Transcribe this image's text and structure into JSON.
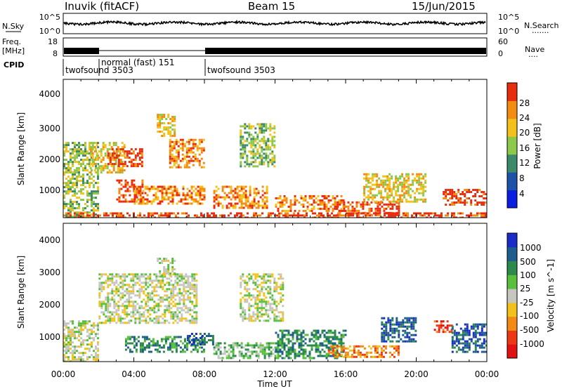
{
  "header": {
    "station": "Inuvik (fitACF)",
    "beam": "Beam 15",
    "date": "15/Jun/2015"
  },
  "noise_panel": {
    "left_label": "N.Sky",
    "right_label": "N.Search",
    "right_legend_dots": "·······",
    "left_ticks": [
      "10^5",
      "10^0"
    ],
    "right_ticks": [
      "10^5",
      "10^0"
    ]
  },
  "freq_panel": {
    "left_label_1": "Freq.",
    "left_label_2": "[MHz]",
    "right_label": "Nave",
    "right_legend_dots": "····",
    "left_ticks": [
      "18",
      "8"
    ],
    "right_ticks": [
      "60",
      "0"
    ]
  },
  "cpid_panel": {
    "label": "CPID",
    "segments": [
      {
        "start_h": 0,
        "end_h": 2.0,
        "text": "twofsound 3503"
      },
      {
        "start_h": 2.0,
        "end_h": 8.0,
        "text": "normal (fast) 151"
      },
      {
        "start_h": 8.0,
        "end_h": 24.0,
        "text": "twofsound 3503"
      }
    ]
  },
  "power_panel": {
    "ylabel": "Slant Range [km]",
    "yticks": [
      "4000",
      "3000",
      "2000",
      "1000"
    ],
    "colorbar_label": "Power [dB]",
    "colorbar_ticks": [
      "28",
      "24",
      "20",
      "16",
      "12",
      "8",
      "4"
    ],
    "colors": [
      "#0a1de0",
      "#1d52a8",
      "#3d8a6a",
      "#8cc84a",
      "#f2c21a",
      "#f48c12",
      "#e82d0e"
    ]
  },
  "velocity_panel": {
    "ylabel": "Slant Range [km]",
    "yticks": [
      "4000",
      "3000",
      "2000",
      "1000"
    ],
    "colorbar_label": "Velocity [m s^-1]",
    "colorbar_ticks": [
      "1000",
      "500",
      "100",
      "25",
      "-25",
      "-100",
      "-500",
      "-1000"
    ],
    "colors": [
      "#1a2cc8",
      "#1e5d8c",
      "#2c8a4c",
      "#58c03c",
      "#c6c6c0",
      "#f2c21a",
      "#f38a14",
      "#ec3814",
      "#e31212"
    ]
  },
  "xaxis": {
    "label": "Time UT",
    "ticks": [
      "00:00",
      "04:00",
      "08:00",
      "12:00",
      "16:00",
      "20:00",
      "00:00"
    ]
  },
  "chart_data": {
    "type": "heatmap",
    "title": "Inuvik (fitACF)  Beam 15  15/Jun/2015",
    "xlabel": "Time UT",
    "ylabel": "Slant Range [km]",
    "xlim_hours": [
      0,
      24
    ],
    "ylim_km": [
      180,
      4600
    ],
    "power_colorbar": {
      "label": "Power [dB]",
      "range": [
        0,
        30
      ],
      "ticks": [
        4,
        8,
        12,
        16,
        20,
        24,
        28
      ]
    },
    "velocity_colorbar": {
      "label": "Velocity [m s^-1]",
      "ticks": [
        1000,
        500,
        100,
        25,
        -25,
        -100,
        -500,
        -1000
      ]
    },
    "power_blobs": [
      {
        "t0": 0.0,
        "t1": 2.0,
        "r0": 200,
        "r1": 2600,
        "level": 3
      },
      {
        "t0": 1.5,
        "t1": 3.5,
        "r0": 1600,
        "r1": 2600,
        "level": 4
      },
      {
        "t0": 2.5,
        "t1": 4.5,
        "r0": 1800,
        "r1": 2400,
        "level": 6
      },
      {
        "t0": 3.0,
        "t1": 4.5,
        "r0": 700,
        "r1": 1400,
        "level": 6
      },
      {
        "t0": 5.3,
        "t1": 6.3,
        "r0": 2800,
        "r1": 3500,
        "level": 4
      },
      {
        "t0": 6.0,
        "t1": 8.0,
        "r0": 1800,
        "r1": 2700,
        "level": 5
      },
      {
        "t0": 4.0,
        "t1": 8.0,
        "r0": 600,
        "r1": 1200,
        "level": 5
      },
      {
        "t0": 8.5,
        "t1": 11.5,
        "r0": 500,
        "r1": 1200,
        "level": 5
      },
      {
        "t0": 10.0,
        "t1": 12.0,
        "r0": 1800,
        "r1": 3200,
        "level": 3
      },
      {
        "t0": 12.0,
        "t1": 16.0,
        "r0": 400,
        "r1": 900,
        "level": 5
      },
      {
        "t0": 15.5,
        "t1": 19.0,
        "r0": 250,
        "r1": 700,
        "level": 6
      },
      {
        "t0": 17.0,
        "t1": 20.5,
        "r0": 700,
        "r1": 1600,
        "level": 4
      },
      {
        "t0": 21.5,
        "t1": 24.0,
        "r0": 600,
        "r1": 1100,
        "level": 6
      },
      {
        "t0": 0.0,
        "t1": 24.0,
        "r0": 200,
        "r1": 350,
        "level": 6
      }
    ],
    "velocity_blobs": [
      {
        "t0": 0.0,
        "t1": 2.0,
        "r0": 200,
        "r1": 1500,
        "level": 4
      },
      {
        "t0": 2.0,
        "t1": 7.5,
        "r0": 1400,
        "r1": 3000,
        "level": 4
      },
      {
        "t0": 5.3,
        "t1": 6.3,
        "r0": 2900,
        "r1": 3500,
        "level": 4
      },
      {
        "t0": 3.5,
        "t1": 8.0,
        "r0": 500,
        "r1": 1000,
        "level": 2
      },
      {
        "t0": 7.0,
        "t1": 8.5,
        "r0": 700,
        "r1": 1100,
        "level": 1
      },
      {
        "t0": 8.5,
        "t1": 12.0,
        "r0": 300,
        "r1": 800,
        "level": 3
      },
      {
        "t0": 10.0,
        "t1": 12.5,
        "r0": 1500,
        "r1": 3000,
        "level": 4
      },
      {
        "t0": 12.0,
        "t1": 16.0,
        "r0": 300,
        "r1": 1200,
        "level": 2
      },
      {
        "t0": 15.0,
        "t1": 19.0,
        "r0": 300,
        "r1": 700,
        "level": 6
      },
      {
        "t0": 18.0,
        "t1": 20.0,
        "r0": 800,
        "r1": 1600,
        "level": 1
      },
      {
        "t0": 21.0,
        "t1": 22.0,
        "r0": 1100,
        "r1": 1500,
        "level": 7
      },
      {
        "t0": 22.0,
        "t1": 24.0,
        "r0": 500,
        "r1": 1400,
        "level": 1
      }
    ]
  }
}
